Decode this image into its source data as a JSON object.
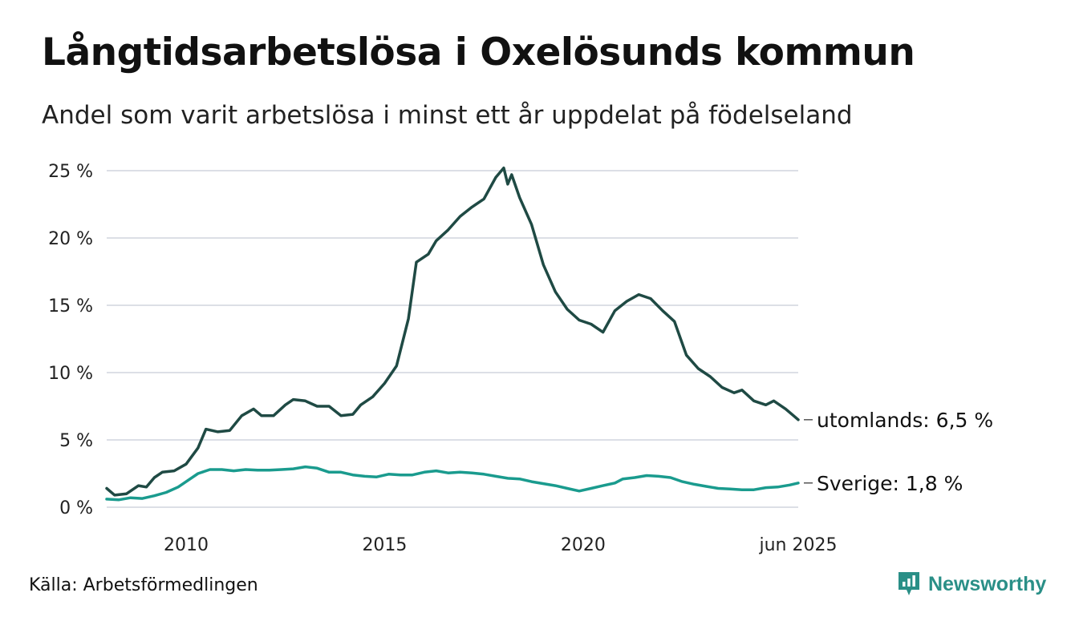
{
  "header": {
    "title": "Långtidsarbetslösa i Oxelösunds kommun",
    "subtitle": "Andel som varit arbetslösa i minst ett år uppdelat på födelseland"
  },
  "footer": {
    "source": "Källa: Arbetsförmedlingen",
    "brand": "Newsworthy"
  },
  "colors": {
    "utomlands": "#1f4a44",
    "sverige": "#1a9b8e",
    "grid": "#dcdfe6",
    "brand": "#2a8f87"
  },
  "icons": {
    "brand": "newsworthy-logo-icon"
  },
  "chart_data": {
    "type": "line",
    "y_ticks": [
      0,
      5,
      10,
      15,
      20,
      25
    ],
    "y_tick_labels": [
      "0 %",
      "5 %",
      "10 %",
      "15 %",
      "20 %",
      "25 %"
    ],
    "ylim": [
      0,
      25
    ],
    "x_ticks": [
      2010,
      2015,
      2020,
      2025.417
    ],
    "x_tick_labels": [
      "2010",
      "2015",
      "2020",
      "jun 2025"
    ],
    "xlim": [
      2008.0,
      2025.417
    ],
    "grid": true,
    "series": [
      {
        "key": "utomlands",
        "end_label": "utomlands: 6,5 %",
        "points": [
          [
            2008.0,
            1.4
          ],
          [
            2008.2,
            0.9
          ],
          [
            2008.5,
            1.0
          ],
          [
            2008.8,
            1.6
          ],
          [
            2009.0,
            1.5
          ],
          [
            2009.2,
            2.2
          ],
          [
            2009.4,
            2.6
          ],
          [
            2009.7,
            2.7
          ],
          [
            2010.0,
            3.2
          ],
          [
            2010.3,
            4.4
          ],
          [
            2010.5,
            5.8
          ],
          [
            2010.8,
            5.6
          ],
          [
            2011.1,
            5.7
          ],
          [
            2011.4,
            6.8
          ],
          [
            2011.7,
            7.3
          ],
          [
            2011.9,
            6.8
          ],
          [
            2012.2,
            6.8
          ],
          [
            2012.5,
            7.6
          ],
          [
            2012.7,
            8.0
          ],
          [
            2013.0,
            7.9
          ],
          [
            2013.3,
            7.5
          ],
          [
            2013.6,
            7.5
          ],
          [
            2013.9,
            6.8
          ],
          [
            2014.2,
            6.9
          ],
          [
            2014.4,
            7.6
          ],
          [
            2014.7,
            8.2
          ],
          [
            2015.0,
            9.2
          ],
          [
            2015.3,
            10.5
          ],
          [
            2015.6,
            14.0
          ],
          [
            2015.8,
            18.2
          ],
          [
            2016.1,
            18.8
          ],
          [
            2016.3,
            19.8
          ],
          [
            2016.6,
            20.6
          ],
          [
            2016.9,
            21.6
          ],
          [
            2017.2,
            22.3
          ],
          [
            2017.5,
            22.9
          ],
          [
            2017.8,
            24.5
          ],
          [
            2018.0,
            25.2
          ],
          [
            2018.1,
            24.0
          ],
          [
            2018.2,
            24.7
          ],
          [
            2018.4,
            23.0
          ],
          [
            2018.7,
            21.0
          ],
          [
            2019.0,
            18.0
          ],
          [
            2019.3,
            16.0
          ],
          [
            2019.6,
            14.7
          ],
          [
            2019.9,
            13.9
          ],
          [
            2020.2,
            13.6
          ],
          [
            2020.5,
            13.0
          ],
          [
            2020.8,
            14.6
          ],
          [
            2021.1,
            15.3
          ],
          [
            2021.4,
            15.8
          ],
          [
            2021.7,
            15.5
          ],
          [
            2022.0,
            14.6
          ],
          [
            2022.3,
            13.8
          ],
          [
            2022.6,
            11.3
          ],
          [
            2022.9,
            10.3
          ],
          [
            2023.2,
            9.7
          ],
          [
            2023.5,
            8.9
          ],
          [
            2023.8,
            8.5
          ],
          [
            2024.0,
            8.7
          ],
          [
            2024.3,
            7.9
          ],
          [
            2024.6,
            7.6
          ],
          [
            2024.8,
            7.9
          ],
          [
            2025.1,
            7.3
          ],
          [
            2025.3,
            6.8
          ],
          [
            2025.417,
            6.5
          ]
        ]
      },
      {
        "key": "sverige",
        "end_label": "Sverige: 1,8 %",
        "points": [
          [
            2008.0,
            0.6
          ],
          [
            2008.3,
            0.55
          ],
          [
            2008.6,
            0.7
          ],
          [
            2008.9,
            0.65
          ],
          [
            2009.2,
            0.85
          ],
          [
            2009.5,
            1.1
          ],
          [
            2009.8,
            1.5
          ],
          [
            2010.0,
            1.9
          ],
          [
            2010.3,
            2.5
          ],
          [
            2010.6,
            2.8
          ],
          [
            2010.9,
            2.8
          ],
          [
            2011.2,
            2.7
          ],
          [
            2011.5,
            2.8
          ],
          [
            2011.8,
            2.75
          ],
          [
            2012.1,
            2.75
          ],
          [
            2012.4,
            2.8
          ],
          [
            2012.7,
            2.85
          ],
          [
            2013.0,
            3.0
          ],
          [
            2013.3,
            2.9
          ],
          [
            2013.6,
            2.6
          ],
          [
            2013.9,
            2.6
          ],
          [
            2014.2,
            2.4
          ],
          [
            2014.5,
            2.3
          ],
          [
            2014.8,
            2.25
          ],
          [
            2015.1,
            2.45
          ],
          [
            2015.4,
            2.4
          ],
          [
            2015.7,
            2.4
          ],
          [
            2016.0,
            2.6
          ],
          [
            2016.3,
            2.7
          ],
          [
            2016.6,
            2.55
          ],
          [
            2016.9,
            2.6
          ],
          [
            2017.2,
            2.55
          ],
          [
            2017.5,
            2.45
          ],
          [
            2017.8,
            2.3
          ],
          [
            2018.1,
            2.15
          ],
          [
            2018.4,
            2.1
          ],
          [
            2018.7,
            1.9
          ],
          [
            2019.0,
            1.75
          ],
          [
            2019.3,
            1.6
          ],
          [
            2019.6,
            1.4
          ],
          [
            2019.9,
            1.2
          ],
          [
            2020.2,
            1.4
          ],
          [
            2020.5,
            1.6
          ],
          [
            2020.8,
            1.8
          ],
          [
            2021.0,
            2.1
          ],
          [
            2021.3,
            2.2
          ],
          [
            2021.6,
            2.35
          ],
          [
            2021.9,
            2.3
          ],
          [
            2022.2,
            2.2
          ],
          [
            2022.5,
            1.9
          ],
          [
            2022.8,
            1.7
          ],
          [
            2023.1,
            1.55
          ],
          [
            2023.4,
            1.4
          ],
          [
            2023.7,
            1.35
          ],
          [
            2024.0,
            1.3
          ],
          [
            2024.3,
            1.3
          ],
          [
            2024.6,
            1.45
          ],
          [
            2024.9,
            1.5
          ],
          [
            2025.2,
            1.65
          ],
          [
            2025.417,
            1.8
          ]
        ]
      }
    ]
  }
}
